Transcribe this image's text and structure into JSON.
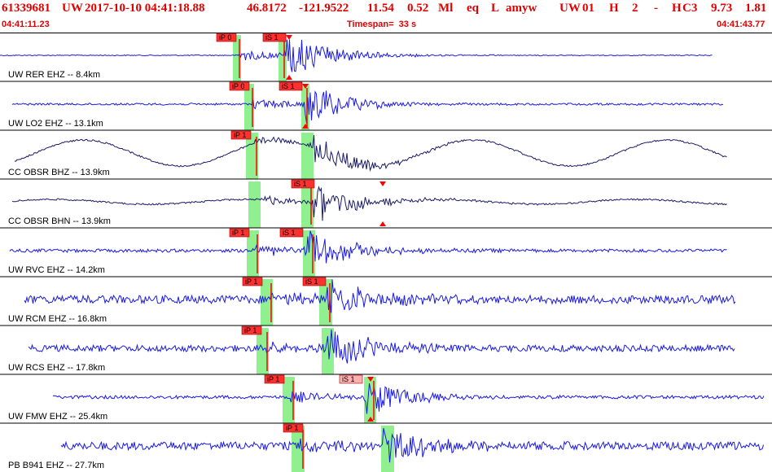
{
  "header": {
    "event_id": "61339681",
    "network": "UW",
    "datetime": "2017-10-10 04:41:18.88",
    "lat": "46.8172",
    "lon": "-121.9522",
    "depth": "11.54",
    "magnitude": "0.52",
    "mag_type": "Ml",
    "etype": "eq",
    "local_flag": "L",
    "author": "amyw",
    "source": "UW",
    "version": "01",
    "quality_flag": "H",
    "field_2": "2",
    "field_dash": "-",
    "field_h": "H",
    "field_c3": "C3",
    "val1": "9.73",
    "val2": "1.81",
    "start_time": "04:41:11.23",
    "timespan_label": "Timespan=  33 s",
    "end_time": "04:41:43.77"
  },
  "channels": [
    {
      "label": "UW RER EHZ -- 8.4km",
      "color": "#1a1ae6",
      "amp": "low-noise",
      "p_tag": "iP 0",
      "s_tag": "iS 1"
    },
    {
      "label": "UW LO2 EHZ -- 13.1km",
      "color": "#1a1ae6",
      "amp": "low-noise",
      "p_tag": "iP 0",
      "s_tag": "iS 1"
    },
    {
      "label": "CC OBSR BHZ -- 13.9km",
      "color": "#1a1a66",
      "amp": "long-period",
      "p_tag": "iP 1",
      "s_tag": ""
    },
    {
      "label": "CC OBSR BHN -- 13.9km",
      "color": "#1a1a66",
      "amp": "long-period",
      "p_tag": "",
      "s_tag": "iS 1"
    },
    {
      "label": "UW RVC EHZ -- 14.2km",
      "color": "#1a1ae6",
      "amp": "medium-noise",
      "p_tag": "iP 1",
      "s_tag": "iS 1"
    },
    {
      "label": "UW RCM EHZ -- 16.8km",
      "color": "#1a1ae6",
      "amp": "high-noise",
      "p_tag": "iP 1",
      "s_tag": "iS 1"
    },
    {
      "label": "UW RCS EHZ -- 17.8km",
      "color": "#1a1ae6",
      "amp": "high-noise",
      "p_tag": "iP 1",
      "s_tag": ""
    },
    {
      "label": "UW FMW EHZ -- 25.4km",
      "color": "#1a1ae6",
      "amp": "medium-noise",
      "p_tag": "iP 1",
      "s_tag": "iS 1"
    },
    {
      "label": "PB B941 EHZ -- 27.7km",
      "color": "#1a1ae6",
      "amp": "high-noise",
      "p_tag": "iP 1",
      "s_tag": ""
    }
  ],
  "colors": {
    "header_text": "#e00000",
    "pick_red": "#ff0000",
    "pick_box": "#ff3030",
    "pick_box_alt": "#ffb0b0",
    "window_green": "#90f090",
    "divider": "#000000",
    "label": "#000000"
  }
}
